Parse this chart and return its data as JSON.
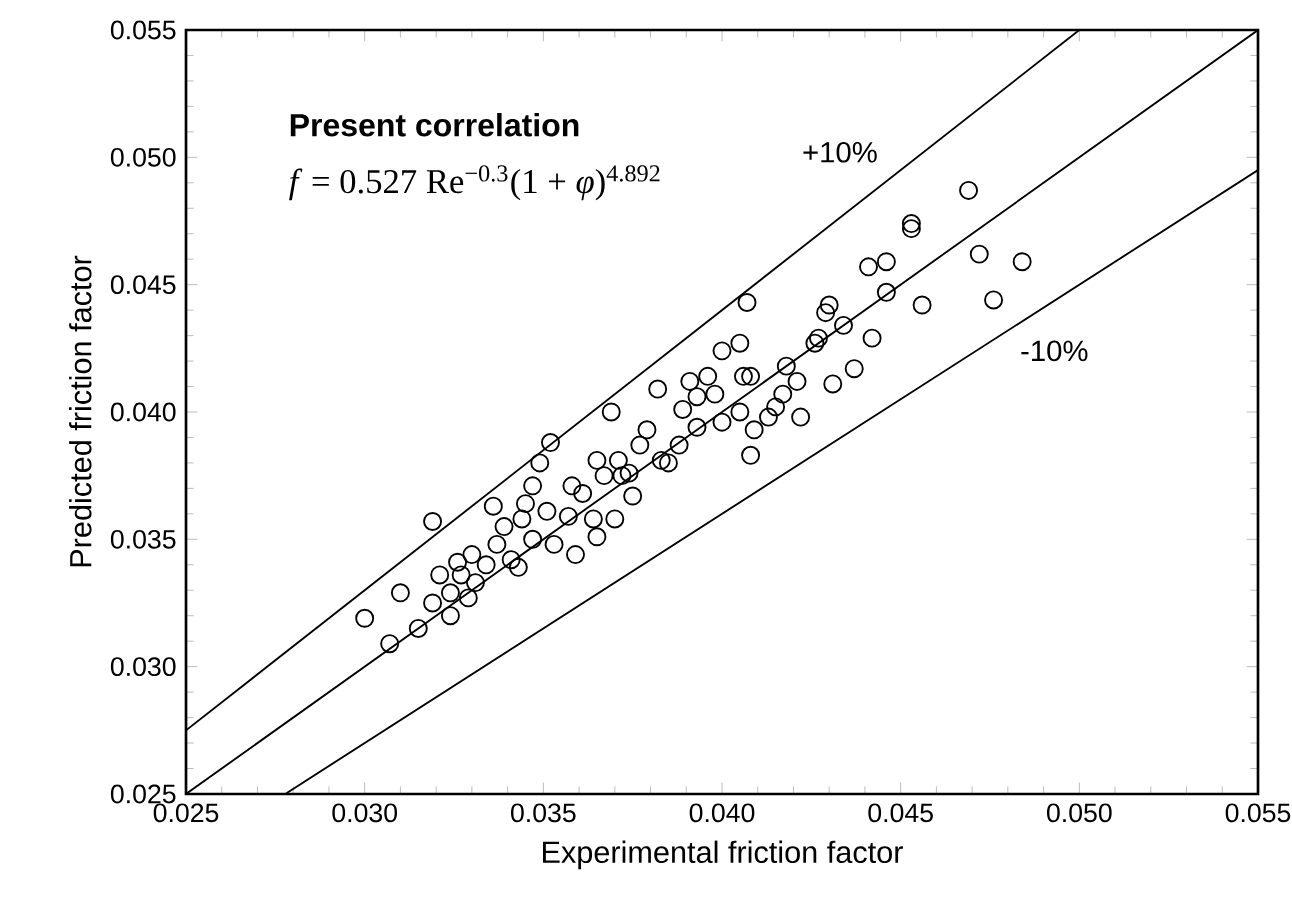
{
  "chart_data": {
    "type": "scatter",
    "xlabel": "Experimental friction factor",
    "ylabel": "Predicted friction factor",
    "xlim": [
      0.025,
      0.055
    ],
    "ylim": [
      0.025,
      0.055
    ],
    "xticks": [
      0.025,
      {
        "value": 0.03,
        "label": "0.030"
      },
      0.035,
      {
        "value": 0.04,
        "label": "0.040"
      },
      0.045,
      {
        "value": 0.05,
        "label": "0.050"
      },
      0.055
    ],
    "yticks": [
      0.025,
      {
        "value": 0.03,
        "label": "0.030"
      },
      0.035,
      {
        "value": 0.04,
        "label": "0.040"
      },
      0.045,
      {
        "value": 0.05,
        "label": "0.050"
      },
      0.055
    ],
    "grid": false,
    "annotations": [
      "Present correlation",
      "*f* = 0.527 Re$^{−0.3}$(1 + *φ*)$^{4.892}$",
      "+10%",
      "-10%"
    ],
    "series": [
      {
        "color": "#000000",
        "marker": "circle",
        "x": [
          0.03,
          0.0307,
          0.031,
          0.0315,
          0.0319,
          0.0319,
          0.0321,
          0.0324,
          0.0324,
          0.0326,
          0.0327,
          0.033,
          0.0329,
          0.0331,
          0.0334,
          0.0336,
          0.0337,
          0.0339,
          0.0341,
          0.0343,
          0.0344,
          0.0345,
          0.0347,
          0.0347,
          0.0349,
          0.0351,
          0.0352,
          0.0353,
          0.0357,
          0.0358,
          0.0359,
          0.0361,
          0.0364,
          0.0365,
          0.0365,
          0.0367,
          0.037,
          0.0371,
          0.0372,
          0.0374,
          0.0375,
          0.0369,
          0.0377,
          0.0379,
          0.0382,
          0.0383,
          0.0385,
          0.0388,
          0.0389,
          0.0391,
          0.0393,
          0.0393,
          0.0396,
          0.0398,
          0.04,
          0.0407,
          0.04,
          0.0405,
          0.0406,
          0.0408,
          0.0418,
          0.0421,
          0.0417,
          0.0415,
          0.0422,
          0.0413,
          0.0409,
          0.0408,
          0.0405,
          0.0426,
          0.0427,
          0.043,
          0.0429,
          0.0434,
          0.0442,
          0.0437,
          0.0431,
          0.0441,
          0.0446,
          0.0446,
          0.0456,
          0.0472,
          0.0476,
          0.0469,
          0.0453,
          0.0453,
          0.0484
        ],
        "values": [
          0.0319,
          0.0309,
          0.0329,
          0.0315,
          0.0357,
          0.0325,
          0.0336,
          0.0329,
          0.032,
          0.0341,
          0.0336,
          0.0344,
          0.0327,
          0.0333,
          0.034,
          0.0363,
          0.0348,
          0.0355,
          0.0342,
          0.0339,
          0.0358,
          0.0364,
          0.0371,
          0.035,
          0.038,
          0.0361,
          0.0388,
          0.0348,
          0.0359,
          0.0371,
          0.0344,
          0.0368,
          0.0358,
          0.0351,
          0.0381,
          0.0375,
          0.0358,
          0.0381,
          0.0375,
          0.0376,
          0.0367,
          0.04,
          0.0387,
          0.0393,
          0.0409,
          0.0381,
          0.038,
          0.0387,
          0.0401,
          0.0412,
          0.0394,
          0.0406,
          0.0414,
          0.0407,
          0.0396,
          0.0443,
          0.0424,
          0.0427,
          0.0414,
          0.0414,
          0.0418,
          0.0412,
          0.0407,
          0.0402,
          0.0398,
          0.0398,
          0.0393,
          0.0383,
          0.04,
          0.0427,
          0.0429,
          0.0442,
          0.0439,
          0.0434,
          0.0429,
          0.0417,
          0.0411,
          0.0457,
          0.0459,
          0.0447,
          0.0442,
          0.0462,
          0.0444,
          0.0487,
          0.0474,
          0.0472,
          0.0459
        ]
      },
      {
        "type": "line",
        "color": "#000000",
        "marker": "none",
        "line_style": "solid",
        "x": [
          0.025,
          0.055
        ],
        "values": [
          0.025,
          0.055
        ]
      },
      {
        "type": "line",
        "color": "#000000",
        "marker": "none",
        "line_style": "solid",
        "x": [
          0.025,
          0.05
        ],
        "values": [
          0.0275,
          0.055
        ]
      },
      {
        "type": "line",
        "color": "#000000",
        "marker": "none",
        "line_style": "solid",
        "x": [
          0.0278,
          0.055
        ],
        "values": [
          0.02502,
          0.0495
        ]
      }
    ]
  }
}
